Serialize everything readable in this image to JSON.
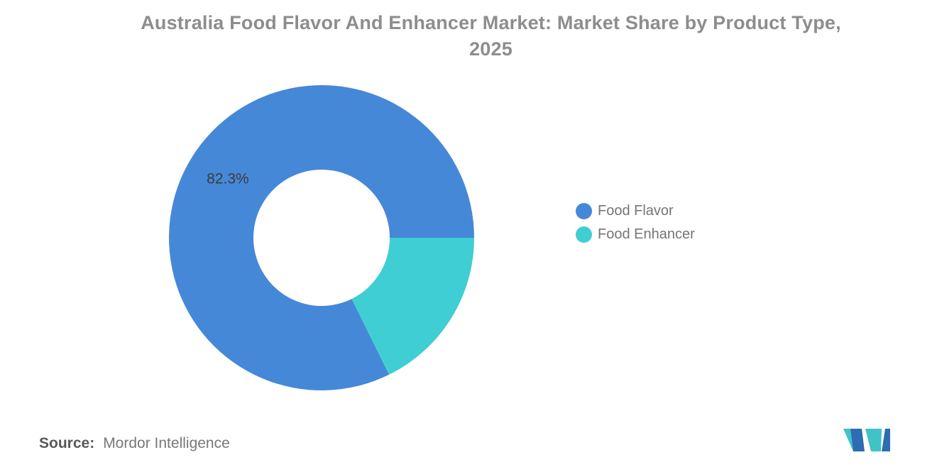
{
  "title": {
    "lines": {
      "0": "Australia Food Flavor And Enhancer Market: Market Share by Product Type,",
      "1": "2025"
    }
  },
  "chart_data": {
    "type": "pie",
    "subtype": "donut",
    "title": "Australia Food Flavor And Enhancer Market: Market Share by Product Type, 2025",
    "categories": [
      "Food Flavor",
      "Food Enhancer"
    ],
    "values": [
      82.3,
      17.7
    ],
    "unit": "%",
    "colors": [
      "#4688d8",
      "#3fced4"
    ],
    "slice_labels": [
      "82.3%",
      ""
    ],
    "start_angle_deg": 153.72,
    "inner_radius_ratio": 0.447,
    "legend_position": "right",
    "grid": false
  },
  "legend": {
    "items": [
      {
        "label": "Food Flavor",
        "color": "#4688d8"
      },
      {
        "label": "Food Enhancer",
        "color": "#3fced4"
      }
    ]
  },
  "source": {
    "prefix": "Source:",
    "text": "Mordor Intelligence"
  },
  "logo": {
    "name": "mordor-intelligence-logo",
    "colors": {
      "teal": "#3fc3c6",
      "blue": "#2e6cb3"
    }
  }
}
